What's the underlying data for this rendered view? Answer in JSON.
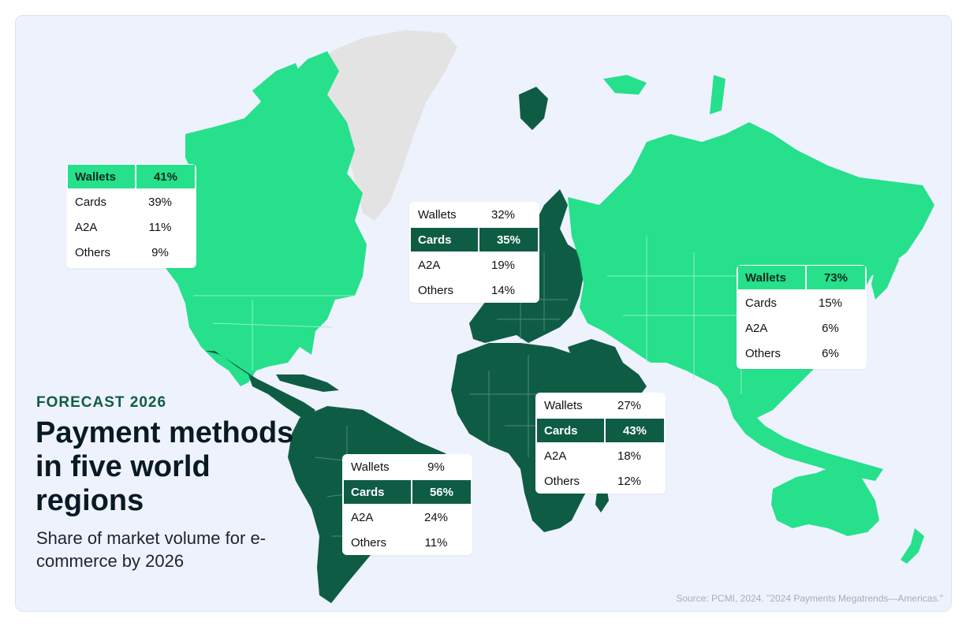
{
  "header": {
    "kicker": "FORECAST 2026",
    "title": "Payment methods in five world regions",
    "subtitle": "Share of market volume for e-commerce by 2026"
  },
  "source": "Source: PCMI, 2024. \"2024 Payments Megatrends—Americas.\"",
  "colors": {
    "light_region": "#26e08c",
    "dark_region": "#0f5c45",
    "greenland": "#e3e3e3",
    "background": "#eef2fc"
  },
  "regions": {
    "north_america": {
      "map_tone": "light",
      "highlight": "Wallets",
      "rows": [
        {
          "label": "Wallets",
          "value": "41%"
        },
        {
          "label": "Cards",
          "value": "39%"
        },
        {
          "label": "A2A",
          "value": "11%"
        },
        {
          "label": "Others",
          "value": "9%"
        }
      ]
    },
    "europe": {
      "map_tone": "dark",
      "highlight": "Cards",
      "rows": [
        {
          "label": "Wallets",
          "value": "32%"
        },
        {
          "label": "Cards",
          "value": "35%"
        },
        {
          "label": "A2A",
          "value": "19%"
        },
        {
          "label": "Others",
          "value": "14%"
        }
      ]
    },
    "asia_pacific": {
      "map_tone": "light",
      "highlight": "Wallets",
      "rows": [
        {
          "label": "Wallets",
          "value": "73%"
        },
        {
          "label": "Cards",
          "value": "15%"
        },
        {
          "label": "A2A",
          "value": "6%"
        },
        {
          "label": "Others",
          "value": "6%"
        }
      ]
    },
    "middle_east_africa": {
      "map_tone": "dark",
      "highlight": "Cards",
      "rows": [
        {
          "label": "Wallets",
          "value": "27%"
        },
        {
          "label": "Cards",
          "value": "43%"
        },
        {
          "label": "A2A",
          "value": "18%"
        },
        {
          "label": "Others",
          "value": "12%"
        }
      ]
    },
    "latin_america": {
      "map_tone": "dark",
      "highlight": "Cards",
      "rows": [
        {
          "label": "Wallets",
          "value": "9%"
        },
        {
          "label": "Cards",
          "value": "56%"
        },
        {
          "label": "A2A",
          "value": "24%"
        },
        {
          "label": "Others",
          "value": "11%"
        }
      ]
    }
  }
}
